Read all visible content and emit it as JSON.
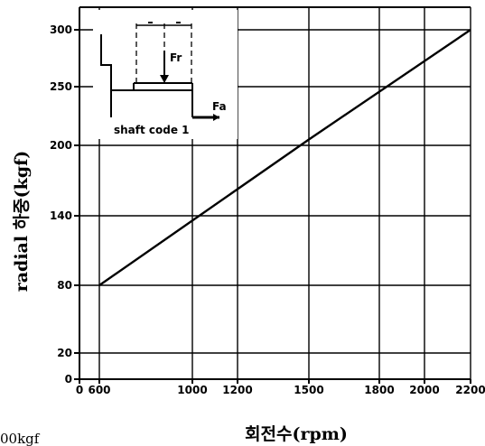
{
  "chart_data": {
    "type": "line",
    "xlabel": "회전수(rpm)",
    "ylabel": "radial 하중(kgf)",
    "x_ticks": [
      0,
      600,
      1000,
      1200,
      1500,
      1800,
      2000,
      2200
    ],
    "y_ticks": [
      0,
      20,
      80,
      140,
      200,
      250,
      300
    ],
    "xlim": [
      0,
      2200
    ],
    "ylim": [
      0,
      320
    ],
    "grid": true,
    "series": [
      {
        "x": [
          600,
          1500,
          2200
        ],
        "y": [
          80,
          205,
          300
        ]
      }
    ],
    "inset": {
      "label": "shaft code 1",
      "force_radial": "Fr",
      "force_axial": "Fa"
    }
  },
  "footnote": "00kgf"
}
